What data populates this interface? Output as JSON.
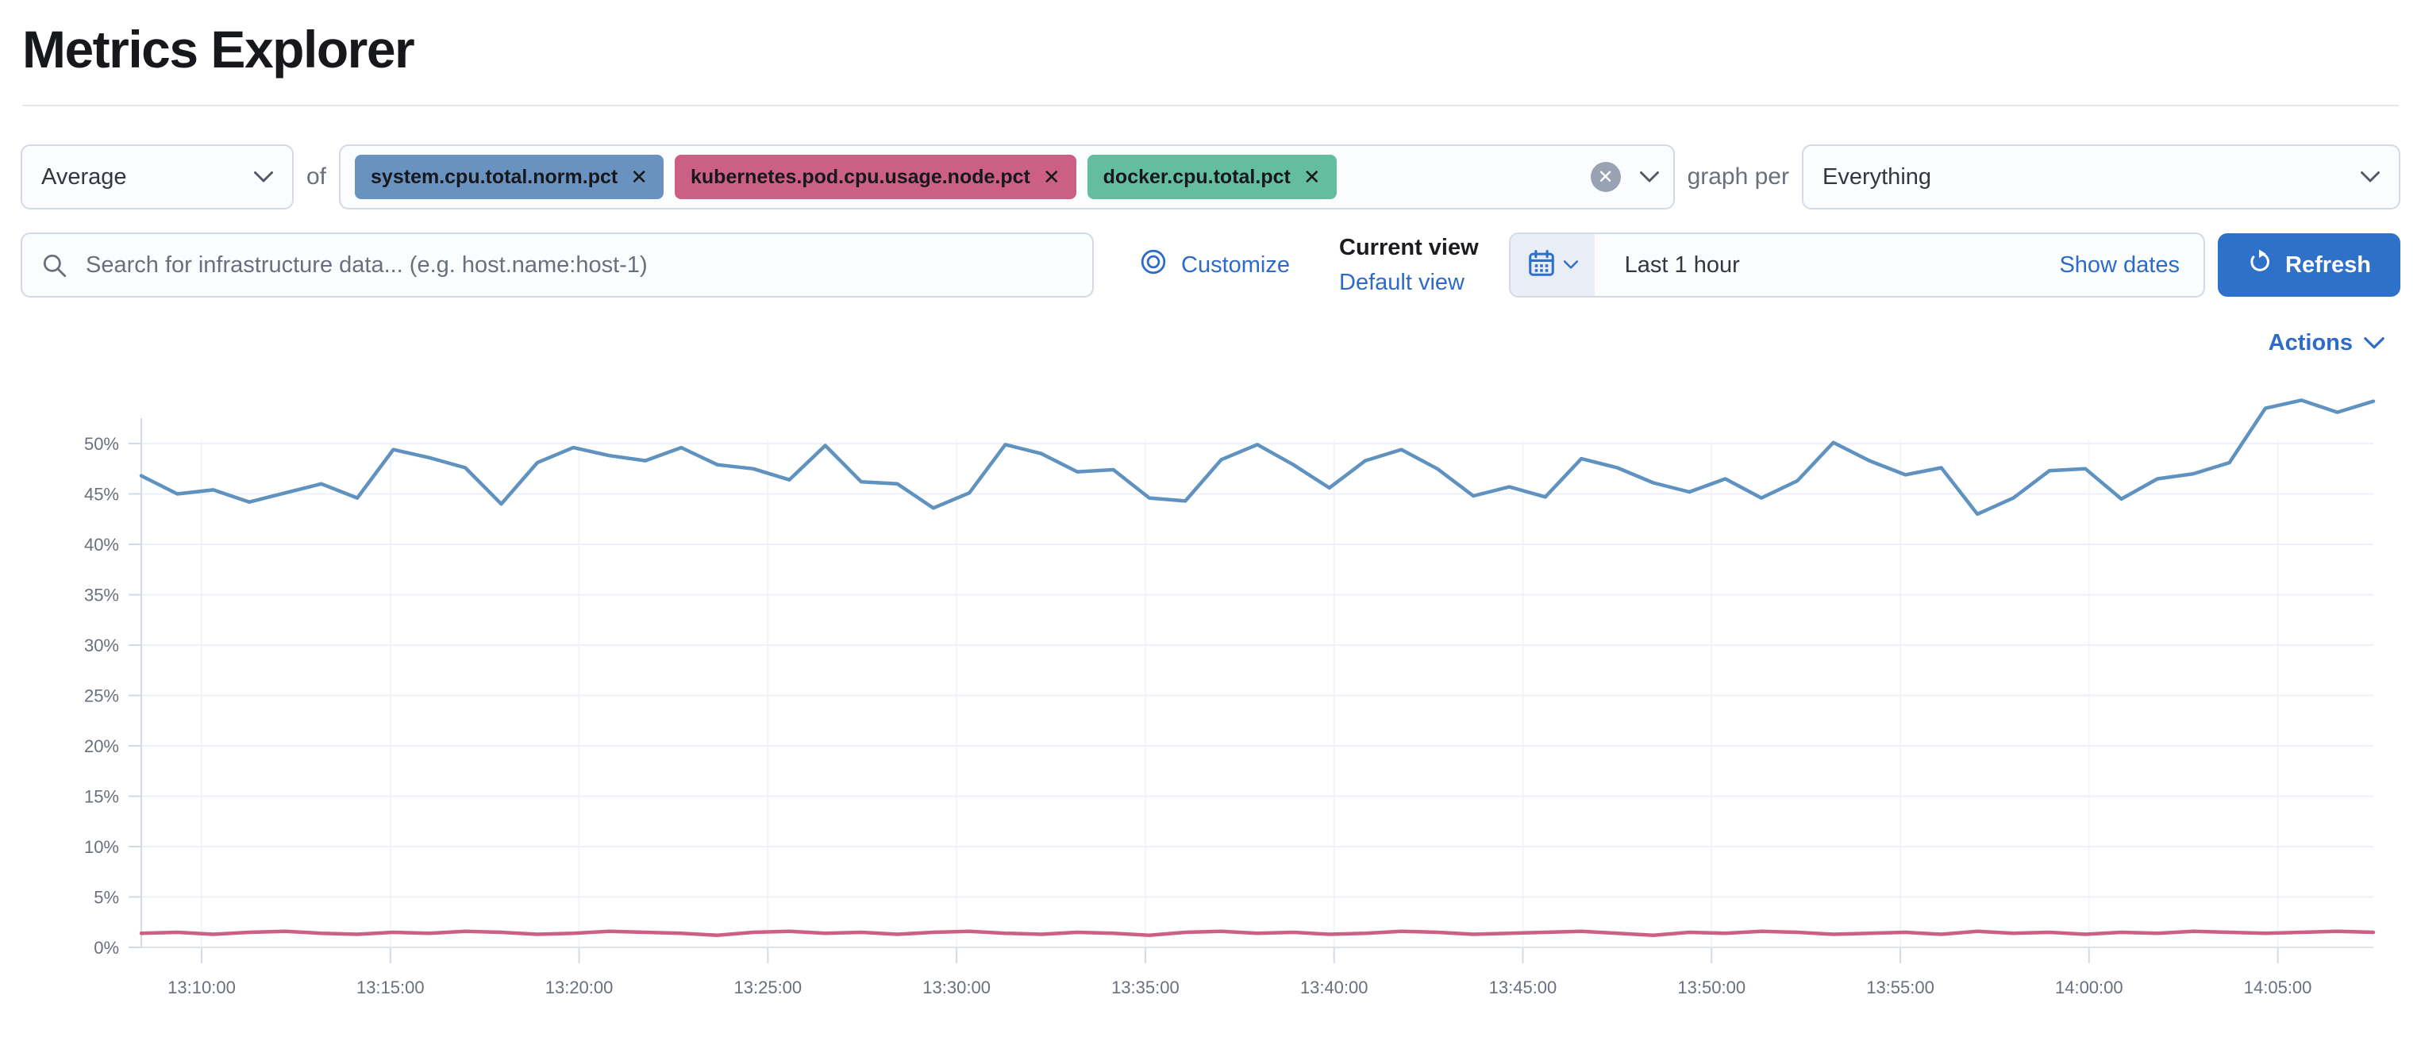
{
  "page": {
    "title": "Metrics Explorer"
  },
  "colors": {
    "accent_link": "#2e6bc8",
    "refresh_button": "#2f70c8",
    "series_blue": "#6092C0",
    "series_pink": "#CC6084",
    "tag_green": "#65BDA0"
  },
  "icons": {
    "aggregation_chevron": "chevron-down",
    "search": "magnifier",
    "customize": "inspect-rings",
    "calendar": "calendar",
    "clear": "circled-x",
    "refresh": "refresh-arrow",
    "actions_chevron": "chevron-down"
  },
  "toolbar": {
    "aggregation": {
      "value": "Average"
    },
    "of_label": "of",
    "metrics": [
      {
        "label": "system.cpu.total.norm.pct",
        "remove_label": "✕",
        "color": "#6992C0"
      },
      {
        "label": "kubernetes.pod.cpu.usage.node.pct",
        "remove_label": "✕",
        "color": "#CC6084"
      },
      {
        "label": "docker.cpu.total.pct",
        "remove_label": "✕",
        "color": "#65BDA0"
      }
    ],
    "clear_label": "✕",
    "graph_per_label": "graph per",
    "group_by": {
      "value": "Everything"
    },
    "search": {
      "placeholder": "Search for infrastructure data... (e.g. host.name:host-1)",
      "value": ""
    },
    "customize_label": "Customize",
    "view_picker": {
      "current_label": "Current view",
      "default_label": "Default view"
    },
    "time_picker": {
      "value": "Last 1 hour",
      "show_dates_label": "Show dates"
    },
    "refresh_label": "Refresh"
  },
  "chart": {
    "actions_label": "Actions"
  },
  "chart_data": {
    "type": "line",
    "title": "",
    "xlabel": "",
    "ylabel": "",
    "y_unit": "%",
    "ylim": [
      0,
      55
    ],
    "grid": true,
    "legend_position": "none",
    "x_tick_labels": [
      "13:10:00",
      "13:15:00",
      "13:20:00",
      "13:25:00",
      "13:30:00",
      "13:35:00",
      "13:40:00",
      "13:45:00",
      "13:50:00",
      "13:55:00",
      "14:00:00",
      "14:05:00"
    ],
    "x_range": [
      "13:08:30",
      "14:07:30"
    ],
    "y_tick_labels": [
      "0%",
      "5%",
      "10%",
      "15%",
      "20%",
      "25%",
      "30%",
      "35%",
      "40%",
      "45%",
      "50%"
    ],
    "series": [
      {
        "name": "system.cpu.total.norm.pct",
        "color": "#6092C0",
        "values": [
          46.8,
          45.0,
          45.4,
          44.2,
          45.1,
          46.0,
          44.6,
          49.4,
          48.6,
          47.6,
          44.0,
          48.1,
          49.6,
          48.8,
          48.3,
          49.6,
          47.9,
          47.5,
          46.4,
          49.8,
          46.2,
          46.0,
          43.6,
          45.1,
          49.9,
          49.0,
          47.2,
          47.4,
          44.6,
          44.3,
          48.4,
          49.9,
          47.9,
          45.6,
          48.3,
          49.4,
          47.5,
          44.8,
          45.7,
          44.7,
          48.5,
          47.6,
          46.1,
          45.2,
          46.5,
          44.6,
          46.3,
          50.1,
          48.3,
          46.9,
          47.6,
          43.0,
          44.6,
          47.3,
          47.5,
          44.5,
          46.5,
          47.0,
          48.1,
          53.5,
          54.3,
          53.1,
          54.2
        ]
      },
      {
        "name": "kubernetes.pod.cpu.usage.node.pct",
        "color": "#CC6084",
        "values": [
          1.4,
          1.5,
          1.3,
          1.5,
          1.6,
          1.4,
          1.3,
          1.5,
          1.4,
          1.6,
          1.5,
          1.3,
          1.4,
          1.6,
          1.5,
          1.4,
          1.2,
          1.5,
          1.6,
          1.4,
          1.5,
          1.3,
          1.5,
          1.6,
          1.4,
          1.3,
          1.5,
          1.4,
          1.2,
          1.5,
          1.6,
          1.4,
          1.5,
          1.3,
          1.4,
          1.6,
          1.5,
          1.3,
          1.4,
          1.5,
          1.6,
          1.4,
          1.2,
          1.5,
          1.4,
          1.6,
          1.5,
          1.3,
          1.4,
          1.5,
          1.3,
          1.6,
          1.4,
          1.5,
          1.3,
          1.5,
          1.4,
          1.6,
          1.5,
          1.4,
          1.5,
          1.6,
          1.5
        ]
      }
    ]
  }
}
